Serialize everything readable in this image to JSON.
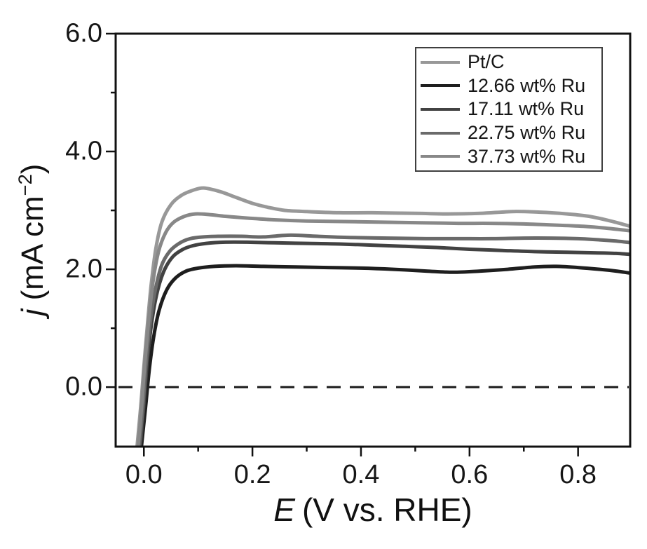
{
  "figure": {
    "background": "#ffffff",
    "frame_color": "#111111",
    "text_color": "#161616"
  },
  "axes": {
    "x_label_italic": "E",
    "x_label_rest": "(V vs. RHE)",
    "y_label_italic": "j",
    "y_label_rest": " (mA cm",
    "y_label_sup": "−2",
    "y_label_end": ")"
  },
  "chart_data": {
    "type": "line",
    "title": "",
    "xlabel": "E (V vs. RHE)",
    "ylabel": "j (mA cm−2)",
    "xlim": [
      -0.052,
      0.896
    ],
    "ylim": [
      -1.01,
      6.0
    ],
    "grid": false,
    "legend_position": "top-right",
    "x_tick_values": [
      0.0,
      0.2,
      0.4,
      0.6,
      0.8
    ],
    "x_tick_labels": [
      "0.0",
      "0.2",
      "0.4",
      "0.6",
      "0.8"
    ],
    "x_minor_ticks": [
      0.1,
      0.3,
      0.5,
      0.7
    ],
    "y_tick_values": [
      0.0,
      2.0,
      4.0,
      6.0
    ],
    "y_tick_labels": [
      "0.0",
      "2.0",
      "4.0",
      "6.0"
    ],
    "y_minor_ticks": [
      1.0,
      3.0,
      5.0
    ],
    "zero_line": {
      "y": 0.0,
      "style": "dashed",
      "color": "#1a1a1a"
    },
    "series": [
      {
        "name": "Pt/C",
        "color": "#989898",
        "points": [
          [
            -0.013,
            -1.05
          ],
          [
            -0.006,
            -0.35
          ],
          [
            0.0,
            0.35
          ],
          [
            0.006,
            1.0
          ],
          [
            0.013,
            1.7
          ],
          [
            0.022,
            2.35
          ],
          [
            0.033,
            2.8
          ],
          [
            0.05,
            3.1
          ],
          [
            0.07,
            3.26
          ],
          [
            0.09,
            3.34
          ],
          [
            0.11,
            3.38
          ],
          [
            0.14,
            3.32
          ],
          [
            0.17,
            3.22
          ],
          [
            0.2,
            3.12
          ],
          [
            0.23,
            3.05
          ],
          [
            0.26,
            3.0
          ],
          [
            0.3,
            2.98
          ],
          [
            0.36,
            2.96
          ],
          [
            0.42,
            2.96
          ],
          [
            0.5,
            2.95
          ],
          [
            0.56,
            2.94
          ],
          [
            0.62,
            2.95
          ],
          [
            0.68,
            2.98
          ],
          [
            0.73,
            2.97
          ],
          [
            0.78,
            2.94
          ],
          [
            0.82,
            2.9
          ],
          [
            0.86,
            2.82
          ],
          [
            0.9,
            2.72
          ]
        ]
      },
      {
        "name": "12.66 wt% Ru",
        "color": "#1e1e1e",
        "points": [
          [
            -0.005,
            -1.05
          ],
          [
            0.003,
            -0.35
          ],
          [
            0.01,
            0.3
          ],
          [
            0.018,
            0.85
          ],
          [
            0.028,
            1.3
          ],
          [
            0.042,
            1.65
          ],
          [
            0.058,
            1.85
          ],
          [
            0.078,
            1.97
          ],
          [
            0.1,
            2.02
          ],
          [
            0.13,
            2.05
          ],
          [
            0.17,
            2.06
          ],
          [
            0.22,
            2.05
          ],
          [
            0.28,
            2.04
          ],
          [
            0.34,
            2.03
          ],
          [
            0.4,
            2.02
          ],
          [
            0.46,
            2.0
          ],
          [
            0.52,
            1.97
          ],
          [
            0.57,
            1.95
          ],
          [
            0.62,
            1.97
          ],
          [
            0.67,
            2.0
          ],
          [
            0.72,
            2.04
          ],
          [
            0.76,
            2.05
          ],
          [
            0.8,
            2.03
          ],
          [
            0.84,
            2.0
          ],
          [
            0.87,
            1.97
          ],
          [
            0.9,
            1.93
          ]
        ]
      },
      {
        "name": "17.11 wt% Ru",
        "color": "#424242",
        "points": [
          [
            -0.007,
            -1.05
          ],
          [
            0.0,
            -0.3
          ],
          [
            0.006,
            0.4
          ],
          [
            0.013,
            1.0
          ],
          [
            0.023,
            1.55
          ],
          [
            0.036,
            1.95
          ],
          [
            0.052,
            2.2
          ],
          [
            0.07,
            2.33
          ],
          [
            0.09,
            2.4
          ],
          [
            0.115,
            2.44
          ],
          [
            0.15,
            2.46
          ],
          [
            0.19,
            2.46
          ],
          [
            0.24,
            2.45
          ],
          [
            0.3,
            2.44
          ],
          [
            0.36,
            2.43
          ],
          [
            0.42,
            2.41
          ],
          [
            0.48,
            2.39
          ],
          [
            0.54,
            2.37
          ],
          [
            0.6,
            2.34
          ],
          [
            0.66,
            2.32
          ],
          [
            0.72,
            2.3
          ],
          [
            0.78,
            2.29
          ],
          [
            0.83,
            2.28
          ],
          [
            0.87,
            2.27
          ],
          [
            0.9,
            2.25
          ]
        ]
      },
      {
        "name": "22.75 wt% Ru",
        "color": "#6a6a6a",
        "points": [
          [
            -0.009,
            -1.05
          ],
          [
            -0.002,
            -0.35
          ],
          [
            0.004,
            0.4
          ],
          [
            0.011,
            1.05
          ],
          [
            0.02,
            1.6
          ],
          [
            0.032,
            2.05
          ],
          [
            0.047,
            2.3
          ],
          [
            0.065,
            2.44
          ],
          [
            0.085,
            2.52
          ],
          [
            0.11,
            2.55
          ],
          [
            0.14,
            2.56
          ],
          [
            0.18,
            2.56
          ],
          [
            0.22,
            2.55
          ],
          [
            0.27,
            2.58
          ],
          [
            0.32,
            2.56
          ],
          [
            0.38,
            2.54
          ],
          [
            0.45,
            2.53
          ],
          [
            0.52,
            2.52
          ],
          [
            0.58,
            2.52
          ],
          [
            0.64,
            2.52
          ],
          [
            0.7,
            2.53
          ],
          [
            0.75,
            2.53
          ],
          [
            0.8,
            2.52
          ],
          [
            0.84,
            2.5
          ],
          [
            0.87,
            2.48
          ],
          [
            0.9,
            2.45
          ]
        ]
      },
      {
        "name": "37.73 wt% Ru",
        "color": "#888888",
        "points": [
          [
            -0.011,
            -1.05
          ],
          [
            -0.004,
            -0.3
          ],
          [
            0.002,
            0.45
          ],
          [
            0.009,
            1.15
          ],
          [
            0.017,
            1.8
          ],
          [
            0.027,
            2.3
          ],
          [
            0.04,
            2.62
          ],
          [
            0.055,
            2.8
          ],
          [
            0.075,
            2.9
          ],
          [
            0.095,
            2.94
          ],
          [
            0.12,
            2.93
          ],
          [
            0.15,
            2.9
          ],
          [
            0.19,
            2.87
          ],
          [
            0.24,
            2.84
          ],
          [
            0.3,
            2.82
          ],
          [
            0.37,
            2.81
          ],
          [
            0.44,
            2.8
          ],
          [
            0.51,
            2.79
          ],
          [
            0.58,
            2.78
          ],
          [
            0.64,
            2.78
          ],
          [
            0.7,
            2.77
          ],
          [
            0.76,
            2.75
          ],
          [
            0.81,
            2.73
          ],
          [
            0.85,
            2.7
          ],
          [
            0.9,
            2.65
          ]
        ]
      }
    ]
  }
}
